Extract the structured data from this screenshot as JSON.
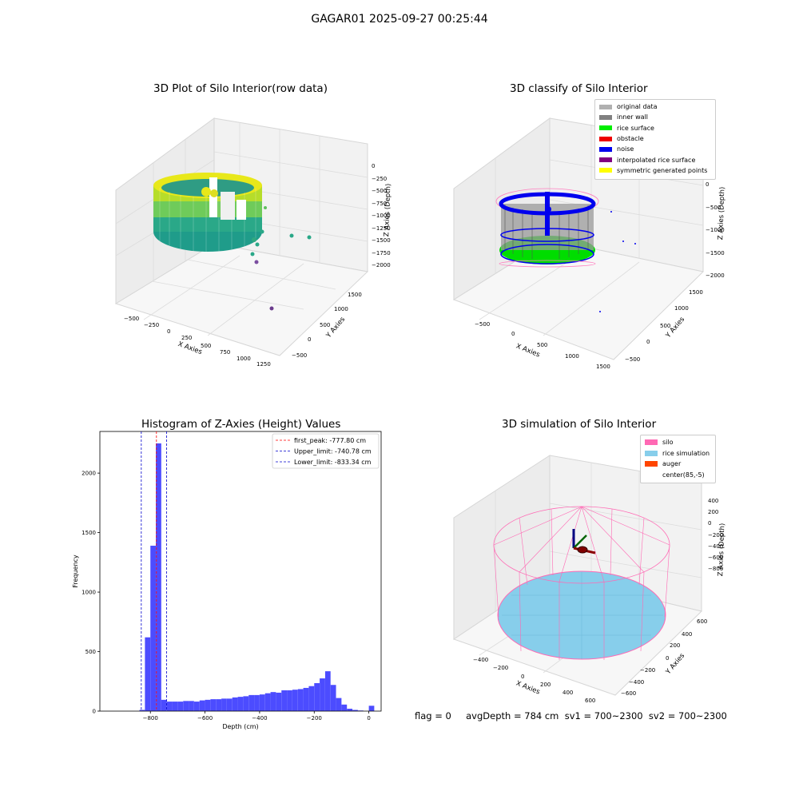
{
  "suptitle": "GAGAR01 2025-09-27 00:25:44",
  "panels": {
    "raw": {
      "title": "3D Plot of Silo Interior(row data)",
      "xlabel": "X Axies",
      "ylabel": "Y Axies",
      "zlabel": "Z Axies (Depth)",
      "xticks": [
        "−500",
        "−250",
        "0",
        "250",
        "500",
        "750",
        "1000",
        "1250"
      ],
      "yticks": [
        "−500",
        "0",
        "500",
        "1000",
        "1500"
      ],
      "zticks": [
        "0",
        "−250",
        "−500",
        "−750",
        "−1000",
        "−1250",
        "−1500",
        "−1750",
        "−2000"
      ]
    },
    "classify": {
      "title": "3D classify of Silo Interior",
      "xlabel": "X Axies",
      "ylabel": "Y Axies",
      "zlabel": "Z Axies (Depth)",
      "xticks": [
        "−500",
        "0",
        "500",
        "1000",
        "1500"
      ],
      "yticks": [
        "−500",
        "0",
        "500",
        "1000",
        "1500"
      ],
      "zticks": [
        "0",
        "−500",
        "−1000",
        "−1500",
        "−2000"
      ],
      "legend": [
        {
          "label": "original data",
          "color": "#b0b0b0"
        },
        {
          "label": "inner wall",
          "color": "#808080"
        },
        {
          "label": "rice surface",
          "color": "#00ee00"
        },
        {
          "label": "obstacle",
          "color": "#ee0000"
        },
        {
          "label": "noise",
          "color": "#0000ee"
        },
        {
          "label": "interpolated rice surface",
          "color": "#800080"
        },
        {
          "label": "symmetric generated points",
          "color": "#ffff00"
        }
      ]
    },
    "sim": {
      "title": "3D simulation of Silo Interior",
      "xlabel": "X Axies",
      "ylabel": "Y Axies",
      "zlabel": "Z Axies (Depth)",
      "xticks": [
        "−400",
        "−200",
        "0",
        "200",
        "400",
        "600"
      ],
      "yticks": [
        "−600",
        "−400",
        "−200",
        "0",
        "200",
        "400",
        "600"
      ],
      "zticks": [
        "400",
        "200",
        "0",
        "−200",
        "−400",
        "−600",
        "−800"
      ],
      "legend": [
        {
          "label": "silo",
          "color": "#ff69b4"
        },
        {
          "label": "rice simulation",
          "color": "#87ceeb"
        },
        {
          "label": "auger",
          "color": "#ff4500"
        },
        {
          "label": "center(85,-5)",
          "color": "#ffffff"
        }
      ]
    }
  },
  "status_text": "flag = 0     avgDepth = 784 cm  sv1 = 700~2300  sv2 = 700~2300",
  "chart_data": {
    "type": "bar",
    "title": "Histogram of Z-Axies (Height) Values",
    "xlabel": "Depth (cm)",
    "ylabel": "Frequency",
    "xlim": [
      -985,
      45
    ],
    "ylim": [
      0,
      2350
    ],
    "xticks": [
      -800,
      -600,
      -400,
      -200,
      0
    ],
    "yticks": [
      0,
      500,
      1000,
      1500,
      2000
    ],
    "bar_color": "#0000ff",
    "bin_width": 19.8,
    "bin_starts": [
      -840,
      -820,
      -800,
      -780,
      -760,
      -740,
      -720,
      -700,
      -680,
      -660,
      -640,
      -620,
      -600,
      -580,
      -560,
      -540,
      -520,
      -500,
      -480,
      -460,
      -440,
      -420,
      -400,
      -380,
      -360,
      -340,
      -320,
      -300,
      -280,
      -260,
      -240,
      -220,
      -200,
      -180,
      -160,
      -140,
      -120,
      -100,
      -80,
      -60,
      -40,
      -20,
      0
    ],
    "values": [
      10,
      620,
      1390,
      2250,
      95,
      80,
      80,
      80,
      85,
      85,
      80,
      90,
      95,
      100,
      100,
      105,
      105,
      115,
      120,
      125,
      135,
      135,
      140,
      150,
      160,
      155,
      175,
      175,
      180,
      185,
      195,
      210,
      235,
      275,
      335,
      220,
      110,
      55,
      20,
      10,
      5,
      0,
      45
    ],
    "lines": [
      {
        "label": "first_peak: -777.80 cm",
        "value": -777.8,
        "color": "#ff0000"
      },
      {
        "label": "Upper_limit: -740.78 cm",
        "value": -740.78,
        "color": "#0000cc"
      },
      {
        "label": "Lower_limit: -833.34 cm",
        "value": -833.34,
        "color": "#0000cc"
      }
    ]
  }
}
